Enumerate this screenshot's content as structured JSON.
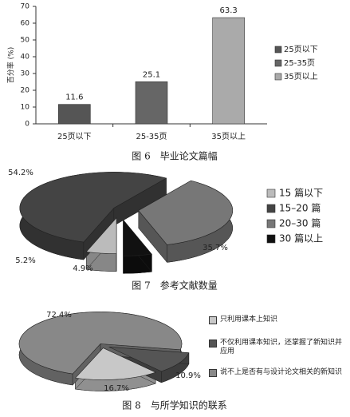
{
  "chart_data": [
    {
      "type": "bar",
      "title": "图 6　毕业论文篇幅",
      "ylabel": "百分率 (%)",
      "categories": [
        "25页以下",
        "25-35页",
        "35页以上"
      ],
      "values": [
        11.6,
        25.1,
        63.3
      ],
      "colors": [
        "#555555",
        "#666666",
        "#aaaaaa"
      ],
      "ylim": [
        0,
        70
      ],
      "yticks": [
        0,
        10,
        20,
        30,
        40,
        50,
        60,
        70
      ]
    },
    {
      "type": "pie",
      "title": "图 7　参考文献数量",
      "categories": [
        "15 篇以下",
        "15–20 篇",
        "20–30 篇",
        "30 篇以上"
      ],
      "values": [
        5.2,
        54.2,
        35.7,
        4.9
      ],
      "value_labels": [
        "5.2%",
        "54.2%",
        "35.7%",
        "4.9%"
      ],
      "colors": [
        "#bbbbbb",
        "#444444",
        "#777777",
        "#111111"
      ]
    },
    {
      "type": "pie",
      "title": "图 8　与所学知识的联系",
      "categories": [
        "只利用课本上知识",
        "不仅利用课本知识，还掌握了新知识并应用",
        "说不上是否有与设计论文相关的新知识"
      ],
      "values": [
        16.7,
        10.9,
        72.4
      ],
      "value_labels": [
        "16.7%",
        "10.9%",
        "72.4%"
      ],
      "colors": [
        "#c8c8c8",
        "#555555",
        "#888888"
      ]
    }
  ]
}
